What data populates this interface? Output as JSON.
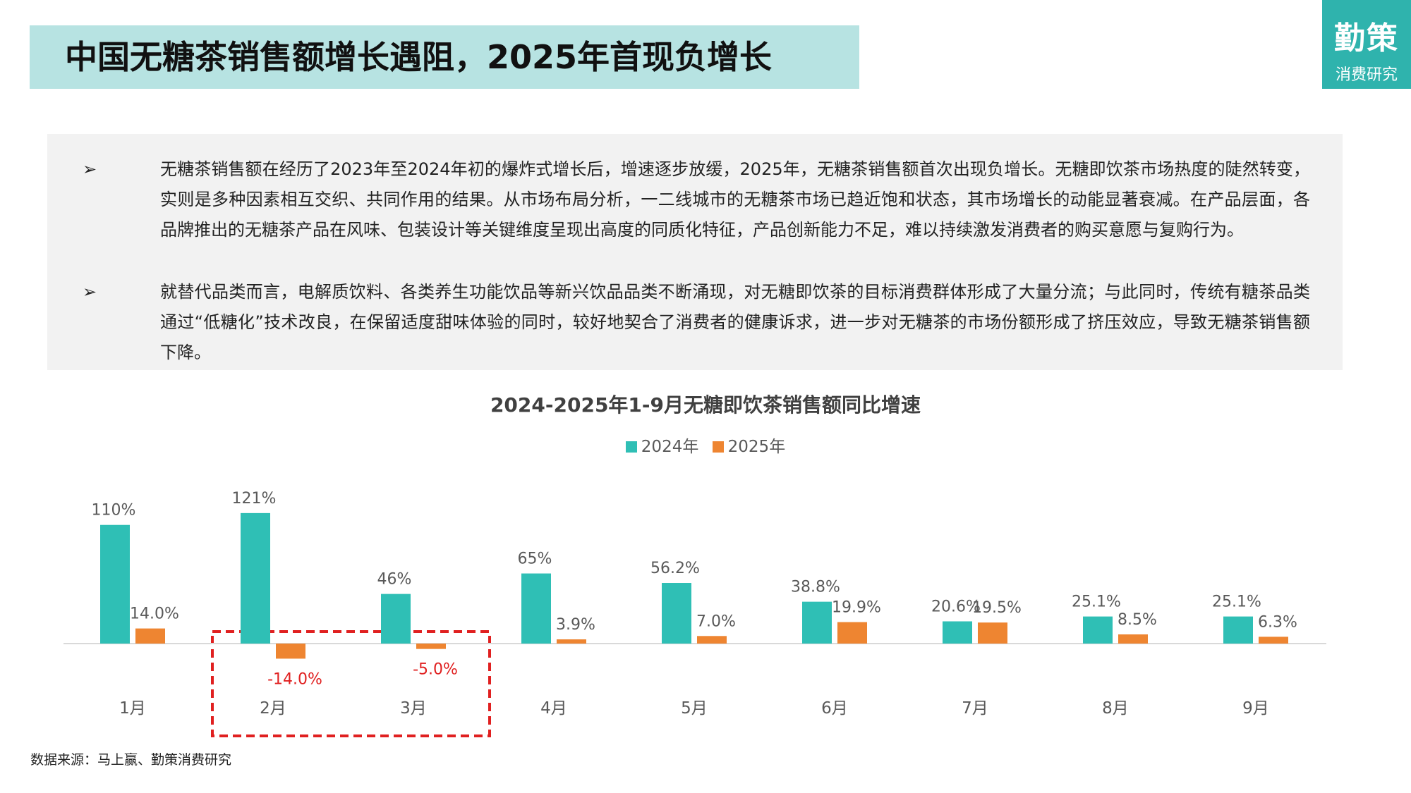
{
  "header": {
    "title": "中国无糖茶销售额增长遇阻，2025年首现负增长",
    "title_bg_color": "#b7e3e2"
  },
  "logo": {
    "main": "勤策",
    "sub": "消费研究",
    "color": "#2fb3ad"
  },
  "summary": {
    "bullet_mark": "➢",
    "bullets": [
      "无糖茶销售额在经历了2023年至2024年初的爆炸式增长后，增速逐步放缓，2025年，无糖茶销售额首次出现负增长。无糖即饮茶市场热度的陡然转变，实则是多种因素相互交织、共同作用的结果。从市场布局分析，一二线城市的无糖茶市场已趋近饱和状态，其市场增长的动能显著衰减。在产品层面，各品牌推出的无糖茶产品在风味、包装设计等关键维度呈现出高度的同质化特征，产品创新能力不足，难以持续激发消费者的购买意愿与复购行为。",
      "就替代品类而言，电解质饮料、各类养生功能饮品等新兴饮品品类不断涌现，对无糖即饮茶的目标消费群体形成了大量分流；与此同时，传统有糖茶品类通过“低糖化”技术改良，在保留适度甜味体验的同时，较好地契合了消费者的健康诉求，进一步对无糖茶的市场份额形成了挤压效应，导致无糖茶销售额下降。"
    ]
  },
  "chart_data": {
    "type": "bar",
    "title": "2024-2025年1-9月无糖即饮茶销售额同比增速",
    "categories": [
      "1月",
      "2月",
      "3月",
      "4月",
      "5月",
      "6月",
      "7月",
      "8月",
      "9月"
    ],
    "series": [
      {
        "name": "2024年",
        "color": "#2fbfb5",
        "values": [
          110,
          121,
          46,
          65,
          56.2,
          38.8,
          20.6,
          25.1,
          25.1
        ],
        "labels": [
          "110%",
          "121%",
          "46%",
          "65%",
          "56.2%",
          "38.8%",
          "20.6%",
          "25.1%",
          "25.1%"
        ]
      },
      {
        "name": "2025年",
        "color": "#ee8531",
        "values": [
          14.0,
          -14.0,
          -5.0,
          3.9,
          7.0,
          19.9,
          19.5,
          8.5,
          6.3
        ],
        "labels": [
          "14.0%",
          "-14.0%",
          "-5.0%",
          "3.9%",
          "7.0%",
          "19.9%",
          "19.5%",
          "8.5%",
          "6.3%"
        ]
      }
    ],
    "negative_label_color": "#e02020",
    "highlight": {
      "categories": [
        "2月",
        "3月"
      ],
      "style": "dashed",
      "color": "#e02020"
    },
    "legend": "top",
    "grid": false
  },
  "source": "数据来源：马上赢、勤策消费研究"
}
